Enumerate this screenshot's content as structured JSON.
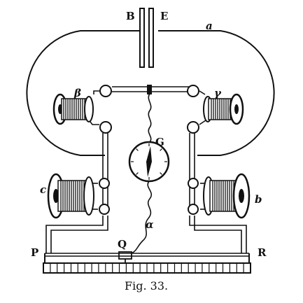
{
  "figure": {
    "caption": "Fig. 33.",
    "ink_color": "#111111",
    "paper_color": "#ffffff"
  },
  "labels": {
    "plate_left": "B",
    "plate_right": "E",
    "outer_wire": "a",
    "coil_upper_left": "β",
    "coil_upper_right": "γ",
    "galvanometer": "G",
    "coil_lower_left": "c",
    "coil_lower_right": "b",
    "flexible_wire": "α",
    "slider": "Q",
    "terminal_left": "P",
    "terminal_right": "R"
  }
}
